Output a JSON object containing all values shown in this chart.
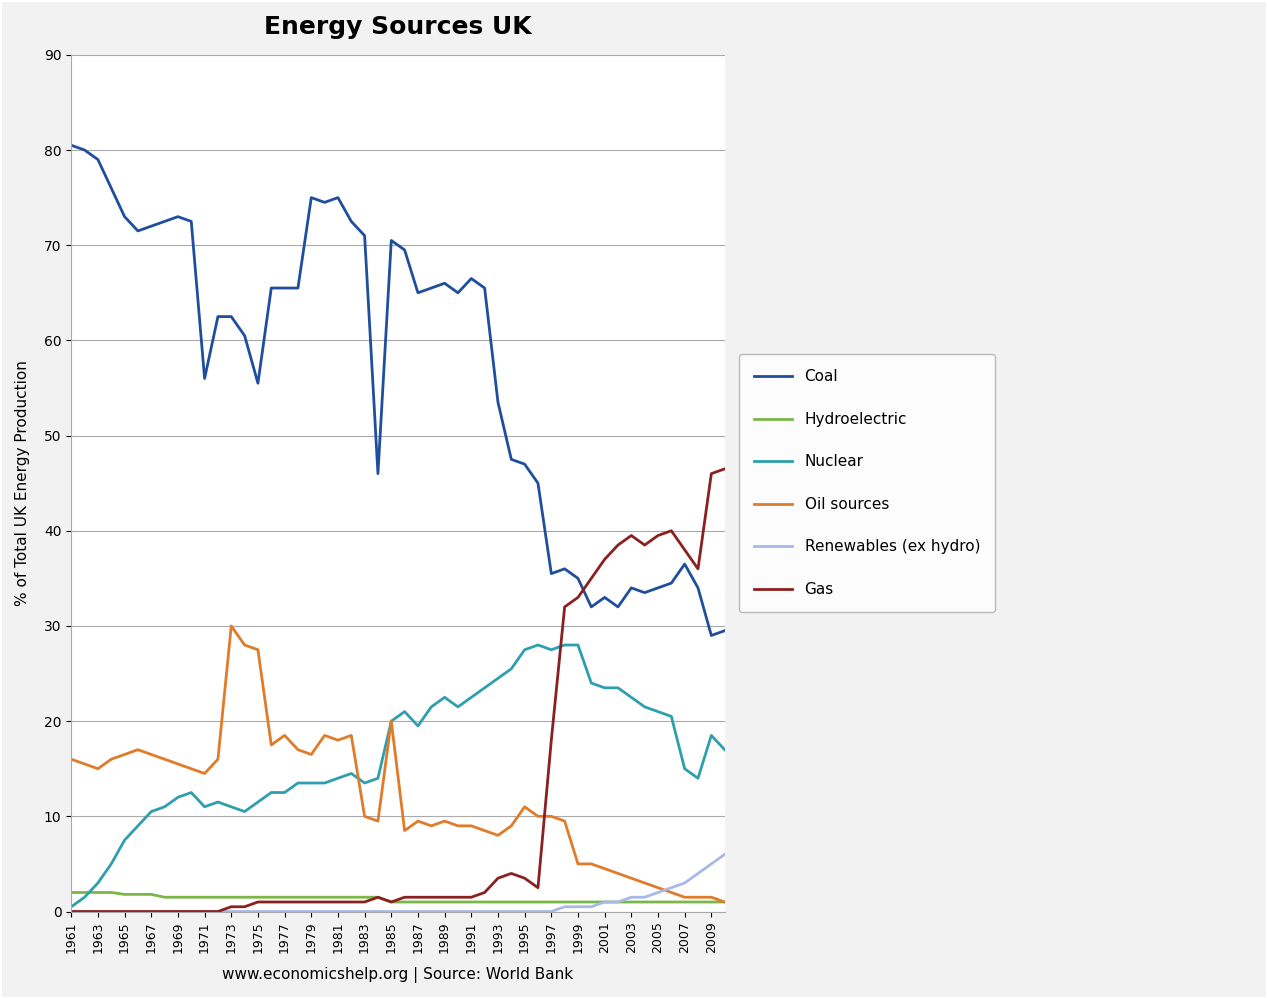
{
  "title": "Energy Sources UK",
  "xlabel": "www.economicshelp.org | Source: World Bank",
  "ylabel": "% of Total UK Energy Production",
  "years": [
    1961,
    1962,
    1963,
    1964,
    1965,
    1966,
    1967,
    1968,
    1969,
    1970,
    1971,
    1972,
    1973,
    1974,
    1975,
    1976,
    1977,
    1978,
    1979,
    1980,
    1981,
    1982,
    1983,
    1984,
    1985,
    1986,
    1987,
    1988,
    1989,
    1990,
    1991,
    1992,
    1993,
    1994,
    1995,
    1996,
    1997,
    1998,
    1999,
    2000,
    2001,
    2002,
    2003,
    2004,
    2005,
    2006,
    2007,
    2008,
    2009,
    2010
  ],
  "coal": [
    80.5,
    80.0,
    79.0,
    76.0,
    73.0,
    71.5,
    72.0,
    72.5,
    73.0,
    72.5,
    56.0,
    62.5,
    62.5,
    60.5,
    55.5,
    65.5,
    65.5,
    65.5,
    75.0,
    74.5,
    75.0,
    72.5,
    71.0,
    46.0,
    70.5,
    69.5,
    65.0,
    65.5,
    66.0,
    65.0,
    66.5,
    65.5,
    53.5,
    47.5,
    47.0,
    45.0,
    35.5,
    36.0,
    35.0,
    32.0,
    33.0,
    32.0,
    34.0,
    33.5,
    34.0,
    34.5,
    36.5,
    34.0,
    29.0,
    29.5
  ],
  "hydroelectric": [
    2.0,
    2.0,
    2.0,
    2.0,
    1.8,
    1.8,
    1.8,
    1.5,
    1.5,
    1.5,
    1.5,
    1.5,
    1.5,
    1.5,
    1.5,
    1.5,
    1.5,
    1.5,
    1.5,
    1.5,
    1.5,
    1.5,
    1.5,
    1.5,
    1.0,
    1.0,
    1.0,
    1.0,
    1.0,
    1.0,
    1.0,
    1.0,
    1.0,
    1.0,
    1.0,
    1.0,
    1.0,
    1.0,
    1.0,
    1.0,
    1.0,
    1.0,
    1.0,
    1.0,
    1.0,
    1.0,
    1.0,
    1.0,
    1.0,
    1.0
  ],
  "nuclear": [
    0.5,
    1.5,
    3.0,
    5.0,
    7.5,
    9.0,
    10.5,
    11.0,
    12.0,
    12.5,
    11.0,
    11.5,
    11.0,
    10.5,
    11.5,
    12.5,
    12.5,
    13.5,
    13.5,
    13.5,
    14.0,
    14.5,
    13.5,
    14.0,
    20.0,
    21.0,
    19.5,
    21.5,
    22.5,
    21.5,
    22.5,
    23.5,
    24.5,
    25.5,
    27.5,
    28.0,
    27.5,
    28.0,
    28.0,
    24.0,
    23.5,
    23.5,
    22.5,
    21.5,
    21.0,
    20.5,
    15.0,
    14.0,
    18.5,
    17.0
  ],
  "oil_sources": [
    16.0,
    15.5,
    15.0,
    16.0,
    16.5,
    17.0,
    16.5,
    16.0,
    15.5,
    15.0,
    14.5,
    16.0,
    30.0,
    28.0,
    27.5,
    17.5,
    18.5,
    17.0,
    16.5,
    18.5,
    18.0,
    18.5,
    10.0,
    9.5,
    20.0,
    8.5,
    9.5,
    9.0,
    9.5,
    9.0,
    9.0,
    8.5,
    8.0,
    9.0,
    11.0,
    10.0,
    10.0,
    9.5,
    5.0,
    5.0,
    4.5,
    4.0,
    3.5,
    3.0,
    2.5,
    2.0,
    1.5,
    1.5,
    1.5,
    1.0
  ],
  "renewables": [
    0.0,
    0.0,
    0.0,
    0.0,
    0.0,
    0.0,
    0.0,
    0.0,
    0.0,
    0.0,
    0.0,
    0.0,
    0.0,
    0.0,
    0.0,
    0.0,
    0.0,
    0.0,
    0.0,
    0.0,
    0.0,
    0.0,
    0.0,
    0.0,
    0.0,
    0.0,
    0.0,
    0.0,
    0.0,
    0.0,
    0.0,
    0.0,
    0.0,
    0.0,
    0.0,
    0.0,
    0.0,
    0.5,
    0.5,
    0.5,
    1.0,
    1.0,
    1.5,
    1.5,
    2.0,
    2.5,
    3.0,
    4.0,
    5.0,
    6.0
  ],
  "gas": [
    0.0,
    0.0,
    0.0,
    0.0,
    0.0,
    0.0,
    0.0,
    0.0,
    0.0,
    0.0,
    0.0,
    0.0,
    0.5,
    0.5,
    1.0,
    1.0,
    1.0,
    1.0,
    1.0,
    1.0,
    1.0,
    1.0,
    1.0,
    1.5,
    1.0,
    1.5,
    1.5,
    1.5,
    1.5,
    1.5,
    1.5,
    2.0,
    3.5,
    4.0,
    3.5,
    2.5,
    18.0,
    32.0,
    33.0,
    35.0,
    37.0,
    38.5,
    39.5,
    38.5,
    39.5,
    40.0,
    38.0,
    36.0,
    46.0,
    46.5
  ],
  "colors": {
    "coal": "#1f4e9c",
    "hydroelectric": "#7ab648",
    "nuclear": "#2e9fae",
    "oil_sources": "#e07b2a",
    "renewables": "#a8b8e8",
    "gas": "#8b2020"
  },
  "ylim": [
    0,
    90
  ],
  "yticks": [
    0,
    10,
    20,
    30,
    40,
    50,
    60,
    70,
    80,
    90
  ],
  "background_color": "#f2f2f2",
  "plot_bg_color": "#ffffff",
  "border_color": "#cccccc"
}
